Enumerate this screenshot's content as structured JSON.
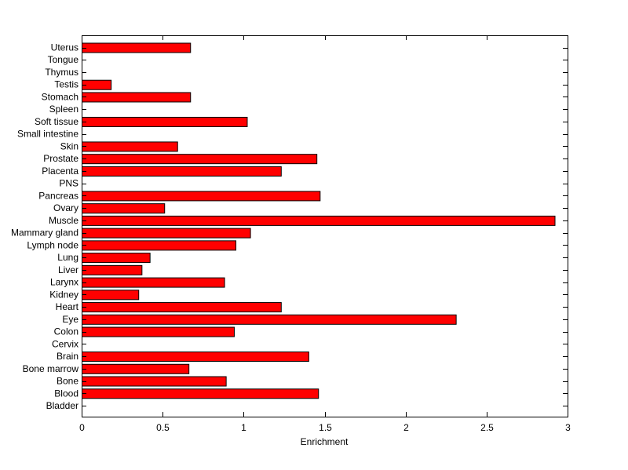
{
  "chart_data": {
    "type": "bar",
    "orientation": "horizontal",
    "title": "",
    "xlabel": "Enrichment",
    "ylabel": "",
    "xlim": [
      0,
      3
    ],
    "xticks": [
      0,
      0.5,
      1,
      1.5,
      2,
      2.5,
      3
    ],
    "xtick_labels": [
      "0",
      "0.5",
      "1",
      "1.5",
      "2",
      "2.5",
      "3"
    ],
    "grid": false,
    "legend": "none",
    "bar_color": "#ff0000",
    "categories": [
      "Bladder",
      "Blood",
      "Bone",
      "Bone marrow",
      "Brain",
      "Cervix",
      "Colon",
      "Eye",
      "Heart",
      "Kidney",
      "Larynx",
      "Liver",
      "Lung",
      "Lymph node",
      "Mammary gland",
      "Muscle",
      "Ovary",
      "Pancreas",
      "PNS",
      "Placenta",
      "Prostate",
      "Skin",
      "Small intestine",
      "Soft tissue",
      "Spleen",
      "Stomach",
      "Testis",
      "Thymus",
      "Tongue",
      "Uterus"
    ],
    "values": [
      0,
      1.46,
      0.89,
      0.66,
      1.4,
      0,
      0.94,
      2.31,
      1.23,
      0.35,
      0.88,
      0.37,
      0.42,
      0.95,
      1.04,
      2.92,
      0.51,
      1.47,
      0,
      1.23,
      1.45,
      0.59,
      0,
      1.02,
      0,
      0.67,
      0.18,
      0,
      0,
      0.67
    ]
  }
}
